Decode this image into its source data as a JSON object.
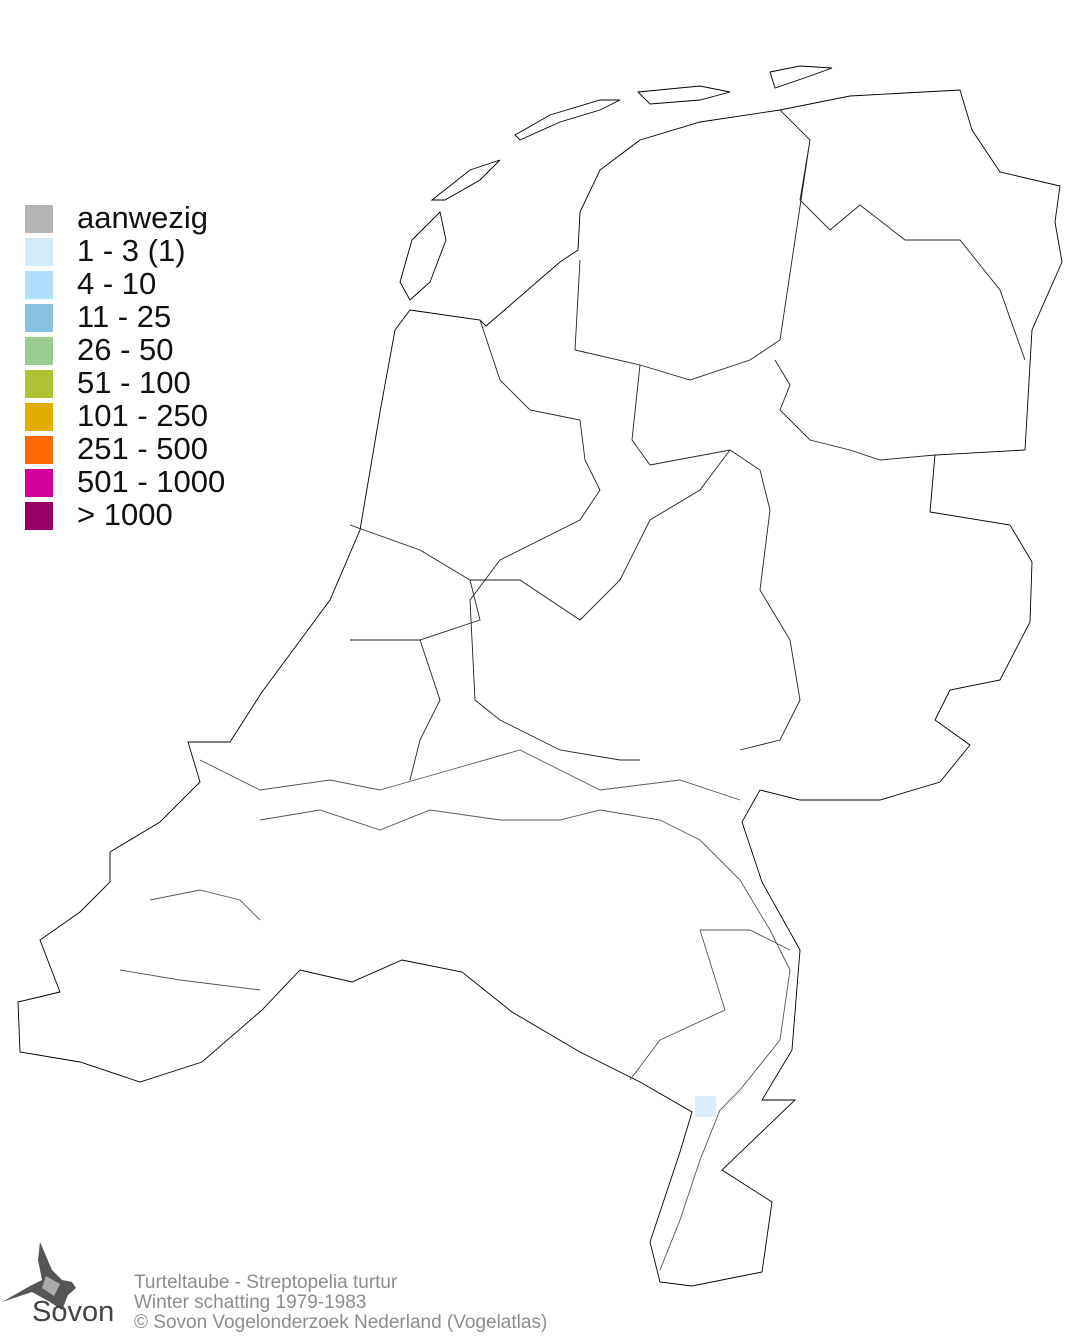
{
  "legend": {
    "items": [
      {
        "label": "aanwezig",
        "color": "#b3b3b3"
      },
      {
        "label": "1 - 3 (1)",
        "color": "#d4eaf9"
      },
      {
        "label": "4 - 10",
        "color": "#aee0fb"
      },
      {
        "label": "11 - 25",
        "color": "#85c1e0"
      },
      {
        "label": "26 - 50",
        "color": "#98cc92"
      },
      {
        "label": "51 - 100",
        "color": "#b0c232"
      },
      {
        "label": "101 - 250",
        "color": "#e3ac00"
      },
      {
        "label": "251 - 500",
        "color": "#ff6a00"
      },
      {
        "label": "501 - 1000",
        "color": "#d1009c"
      },
      {
        "label": "> 1000",
        "color": "#990066"
      }
    ]
  },
  "observations": [
    {
      "class": "1 - 3 (1)",
      "color": "#d4eaf9",
      "location": "Zuid-Limburg (Maas)"
    }
  ],
  "credits": {
    "species": "Turteltaube - Streptopelia turtur",
    "period": "Winter schatting 1979-1983",
    "copyright": "© Sovon Vogelonderzoek Nederland (Vogelatlas)"
  },
  "logo": {
    "text": "Sovon"
  }
}
